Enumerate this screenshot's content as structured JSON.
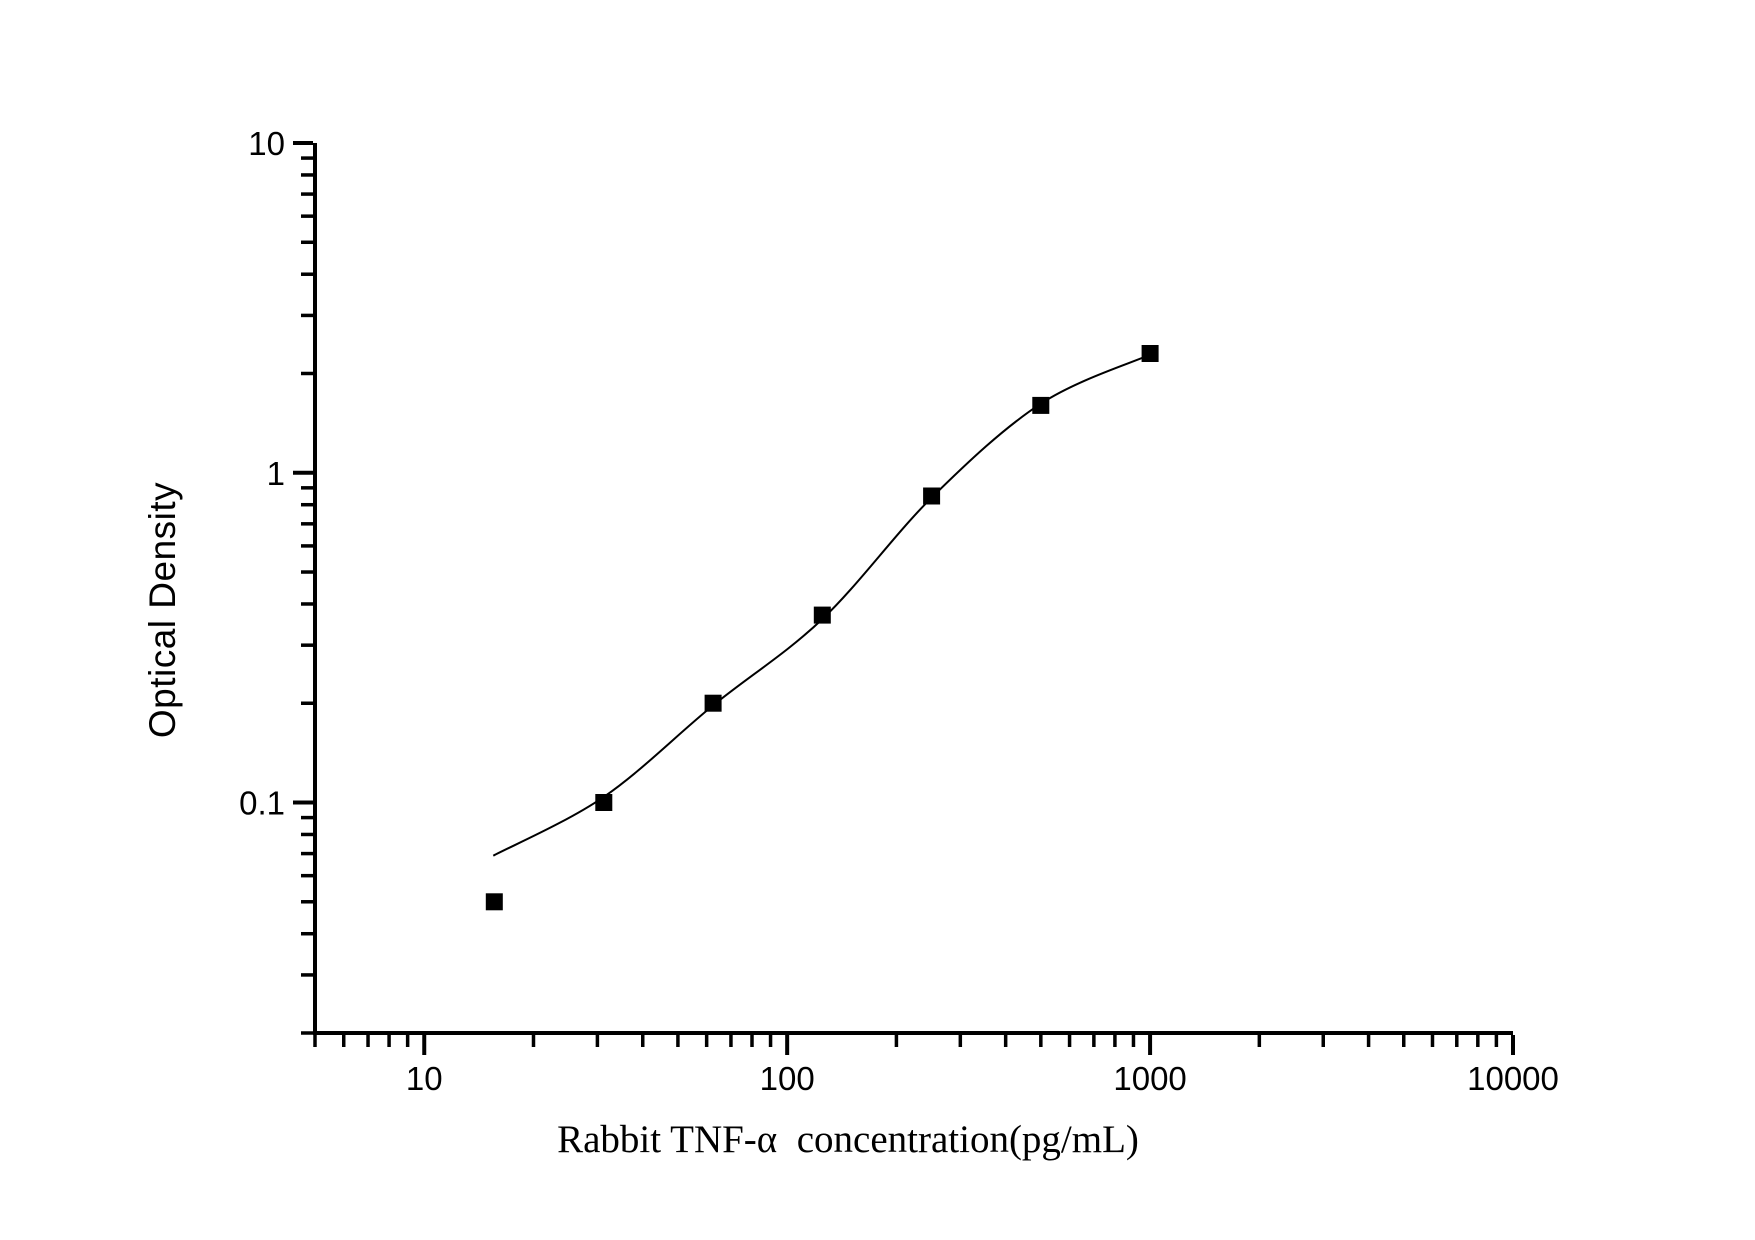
{
  "chart_data": {
    "type": "scatter",
    "title": "",
    "xlabel": "Rabbit TNF-α  concentration(pg/mL)",
    "ylabel": "Optical Density",
    "x_scale": "log",
    "y_scale": "log",
    "xlim": [
      5,
      10000
    ],
    "ylim": [
      0.02,
      10
    ],
    "grid": false,
    "legend": null,
    "axis_color": "#000000",
    "background_color": "#ffffff",
    "x_major_ticks": {
      "values": [
        10,
        100,
        1000,
        10000
      ],
      "labels": [
        "10",
        "100",
        "1000",
        "10000"
      ]
    },
    "y_major_ticks": {
      "values": [
        0.1,
        1,
        10
      ],
      "labels": [
        "0.1",
        "1",
        "10"
      ]
    },
    "series": [
      {
        "name": "standard-points",
        "kind": "scatter",
        "marker": "filled-square",
        "color": "#000000",
        "x": [
          15.6,
          31.25,
          62.5,
          125,
          250,
          500,
          1000
        ],
        "y": [
          0.05,
          0.1,
          0.2,
          0.37,
          0.85,
          1.6,
          2.3
        ]
      },
      {
        "name": "fit-curve",
        "kind": "line",
        "color": "#000000",
        "x": [
          15.5,
          31.25,
          62.5,
          125,
          250,
          500,
          1000
        ],
        "y": [
          0.069,
          0.104,
          0.197,
          0.36,
          0.84,
          1.62,
          2.28
        ]
      }
    ]
  }
}
